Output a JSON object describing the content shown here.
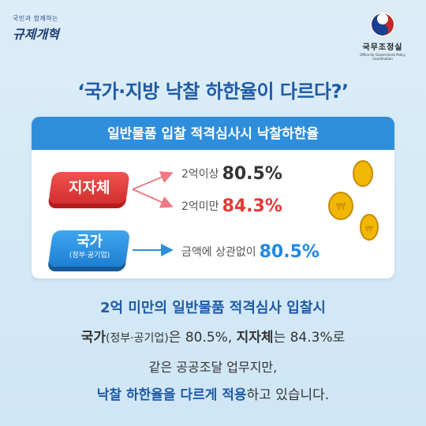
{
  "header": {
    "left_small": "국민과 함께하는",
    "left_script": "규제개혁",
    "org_name": "국무조정실",
    "org_eng": "Office for Government Policy Coordination"
  },
  "headline": "‘국가·지방 낙찰 하한율이 다르다?’",
  "card": {
    "title": "일반물품 입찰 적격심사시 낙찰하한율",
    "local": {
      "badge": "지자체",
      "rows": [
        {
          "label": "2억이상",
          "value": "80.5%"
        },
        {
          "label": "2억미만",
          "value": "84.3%"
        }
      ]
    },
    "nation": {
      "badge": "국가",
      "badge_sub": "(정부·공기업)",
      "row": {
        "label": "금액에 상관없이",
        "value": "80.5%"
      }
    }
  },
  "summary": {
    "line1": "2억 미만의 일반물품 적격심사 입찰시",
    "line2_a": "국가",
    "line2_b": "(정부·공기업)",
    "line2_c": "은 80.5%, ",
    "line2_d": "지자체",
    "line2_e": "는 84.3%로",
    "line3": "같은 공공조달 업무지만,",
    "line4_a": "낙찰 하한율을 다르게 적용",
    "line4_b": "하고 있습니다."
  },
  "colors": {
    "primary_blue": "#1f5aa6",
    "awning_blue": "#2f8edb",
    "local_red": "#e53935",
    "nation_blue": "#1e88e5",
    "background": "#d6eaf7"
  }
}
